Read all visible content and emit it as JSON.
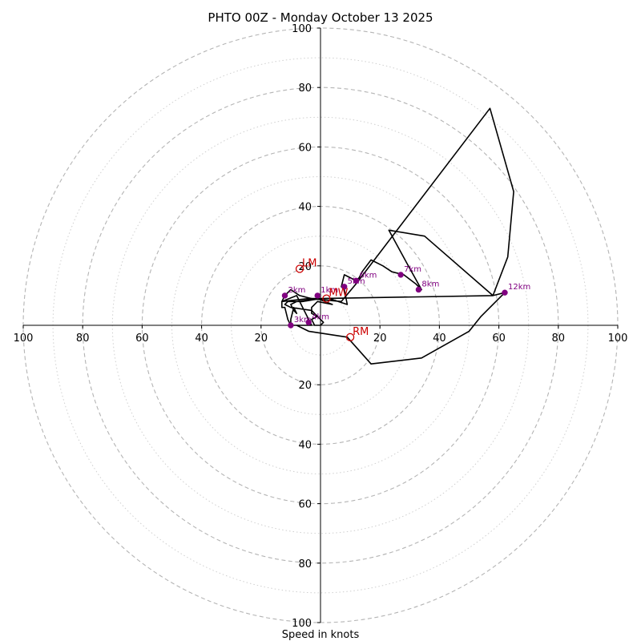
{
  "chart_data": {
    "type": "hodograph",
    "title": "PHTO 00Z - Monday October 13 2025",
    "xlabel": "Speed in knots",
    "range_max": 100,
    "rings_dashed": [
      20,
      40,
      60,
      80,
      100
    ],
    "rings_dotted": [
      10,
      30,
      50,
      70,
      90
    ],
    "tick_labels": [
      "100",
      "80",
      "60",
      "40",
      "20",
      "20",
      "40",
      "60",
      "80",
      "100"
    ],
    "colors": {
      "trace": "#000000",
      "km_marker": "#800080",
      "motion": "#cc0000",
      "grid": "#b4b4b4",
      "axis": "#000000"
    },
    "trace": [
      [
        0,
        0
      ],
      [
        -2,
        0
      ],
      [
        -3,
        2
      ],
      [
        -1,
        3
      ],
      [
        -3,
        4
      ],
      [
        -3,
        6
      ],
      [
        -1,
        8
      ],
      [
        4,
        7
      ],
      [
        -1,
        9
      ],
      [
        -8,
        8
      ],
      [
        -10,
        7
      ],
      [
        -9,
        5
      ],
      [
        -8,
        4
      ],
      [
        -9,
        6
      ],
      [
        -10,
        2
      ],
      [
        -10,
        0
      ],
      [
        -11,
        2
      ],
      [
        -12,
        6
      ],
      [
        -13,
        6
      ],
      [
        -13,
        8
      ],
      [
        -12,
        10
      ],
      [
        -11,
        11
      ],
      [
        -10,
        12
      ],
      [
        -7,
        10
      ],
      [
        -3,
        9
      ],
      [
        3,
        9
      ],
      [
        9,
        7
      ],
      [
        8,
        12
      ],
      [
        7,
        13
      ],
      [
        8,
        17
      ],
      [
        10,
        16
      ],
      [
        12,
        15
      ],
      [
        13,
        16
      ],
      [
        14,
        18
      ],
      [
        17,
        22
      ],
      [
        21,
        20
      ],
      [
        24,
        18
      ],
      [
        28,
        17
      ],
      [
        32,
        14
      ],
      [
        34,
        12
      ],
      [
        29,
        21
      ],
      [
        23,
        32
      ],
      [
        35,
        30
      ],
      [
        58,
        10
      ],
      [
        62,
        11
      ],
      [
        54,
        3
      ],
      [
        50,
        -2
      ],
      [
        34,
        -11
      ],
      [
        17,
        -13
      ],
      [
        9,
        -4
      ],
      [
        -4,
        -2
      ],
      [
        -8,
        0
      ],
      [
        -10,
        0
      ],
      [
        -3,
        0
      ],
      [
        -8,
        10
      ],
      [
        -13,
        8
      ],
      [
        -4,
        9
      ],
      [
        7,
        8
      ],
      [
        12,
        14
      ],
      [
        57,
        73
      ],
      [
        65,
        45
      ],
      [
        63,
        23
      ],
      [
        58,
        10
      ],
      [
        0,
        9
      ],
      [
        -6,
        8
      ],
      [
        -11,
        8
      ],
      [
        -12,
        7
      ],
      [
        -10,
        6
      ],
      [
        -3,
        5
      ],
      [
        -1,
        3
      ],
      [
        1,
        1
      ],
      [
        0,
        0
      ]
    ],
    "km_markers": [
      {
        "label": "1km",
        "u": -1,
        "v": 10
      },
      {
        "label": "2km",
        "u": -12,
        "v": 10
      },
      {
        "label": "3km",
        "u": -10,
        "v": 0
      },
      {
        "label": "4km",
        "u": -4,
        "v": 1
      },
      {
        "label": "5km",
        "u": 8,
        "v": 13
      },
      {
        "label": "6km",
        "u": 12,
        "v": 15
      },
      {
        "label": "7km",
        "u": 27,
        "v": 17
      },
      {
        "label": "8km",
        "u": 33,
        "v": 12
      },
      {
        "label": "12km",
        "u": 62,
        "v": 11
      }
    ],
    "storm_motions": [
      {
        "label": "LM",
        "u": -7,
        "v": 19
      },
      {
        "label": "MW",
        "u": 2,
        "v": 9
      },
      {
        "label": "RM",
        "u": 10,
        "v": -4
      }
    ],
    "extra_km_labels": [
      {
        "label": "4km",
        "u": 0,
        "v": 3
      }
    ]
  }
}
